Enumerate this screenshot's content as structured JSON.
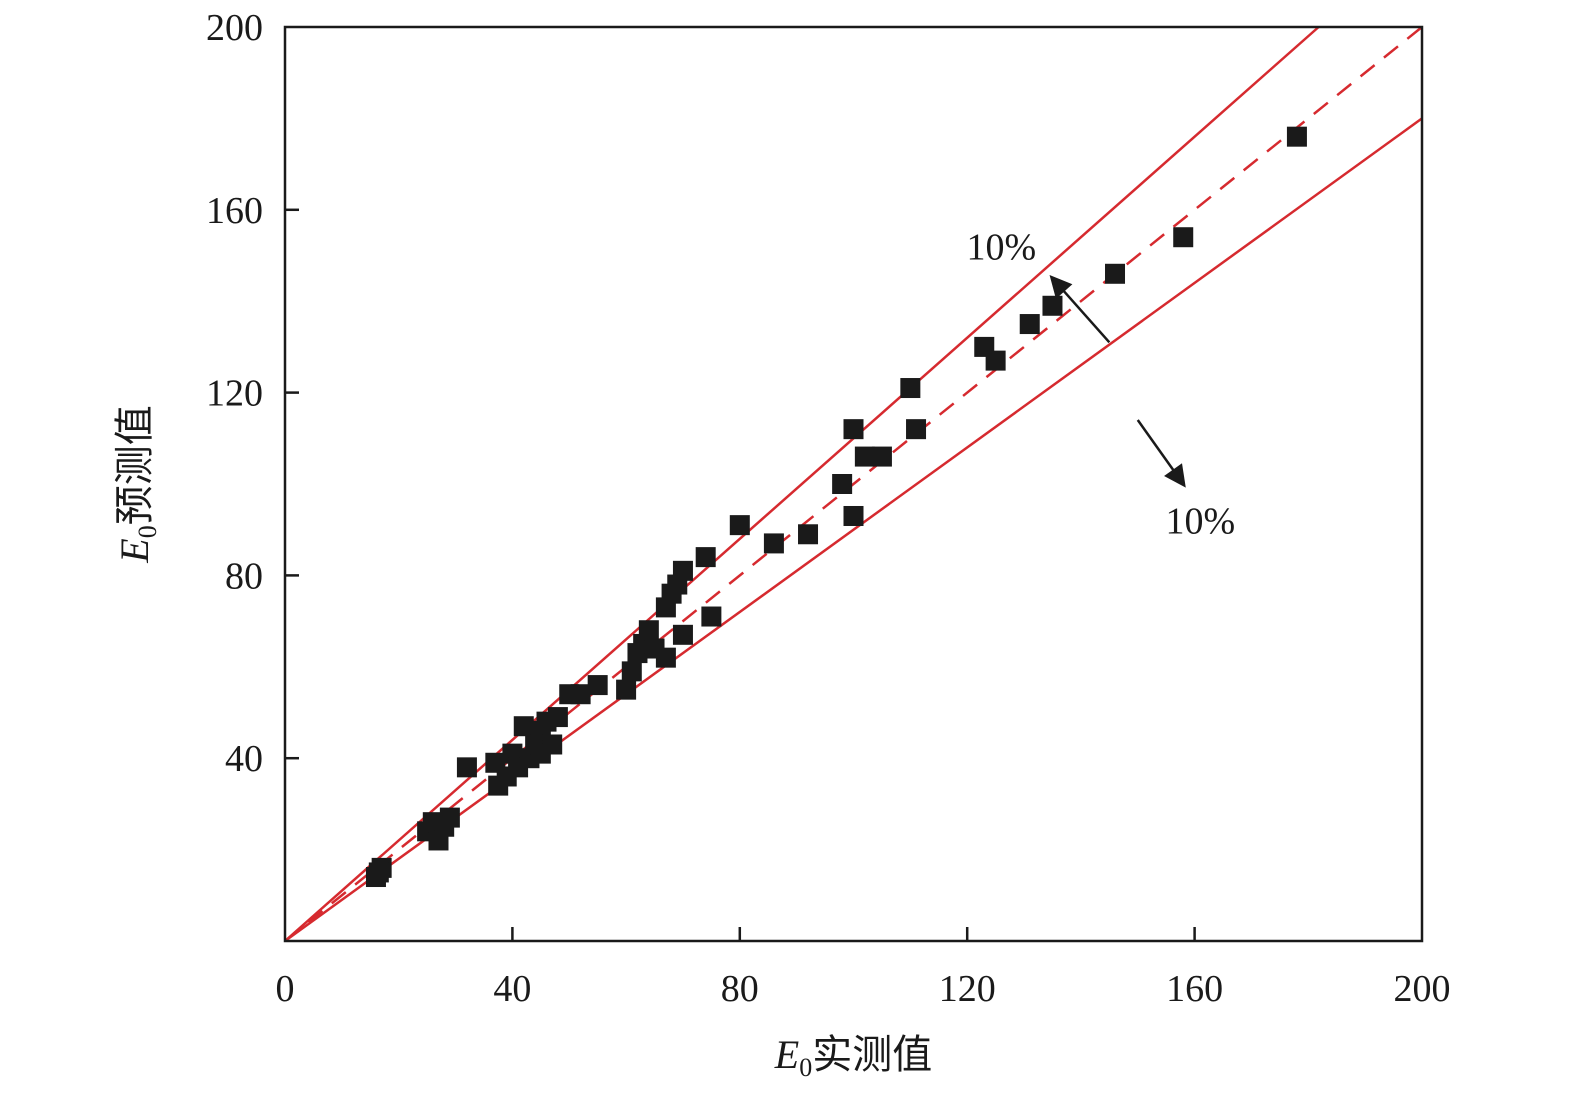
{
  "chart_data": {
    "type": "scatter",
    "title": "",
    "xlabel": "E0实测值",
    "xlabel_parts": {
      "var": "E",
      "sub": "0",
      "rest": "实测值"
    },
    "ylabel": "E0预测值",
    "ylabel_parts": {
      "var": "E",
      "sub": "0",
      "rest": "预测值"
    },
    "xlim": [
      0,
      200
    ],
    "ylim": [
      0,
      200
    ],
    "x_ticks": [
      0,
      40,
      80,
      120,
      160,
      200
    ],
    "y_ticks": [
      40,
      80,
      120,
      160,
      200
    ],
    "grid": false,
    "legend": "none",
    "colors": {
      "points": "#1a1a1a",
      "lines": "#d62a2f",
      "axes": "#1a1a1a"
    },
    "reference_lines": [
      {
        "kind": "dashed",
        "slope": 1.0
      },
      {
        "kind": "solid",
        "slope": 1.1
      },
      {
        "kind": "solid",
        "slope": 0.9
      }
    ],
    "annotations": [
      {
        "text": "10%",
        "at": [
          126,
          152
        ],
        "arrow_from": [
          145,
          131
        ],
        "arrow_to": [
          135,
          145
        ]
      },
      {
        "text": "10%",
        "at": [
          161,
          92
        ],
        "arrow_from": [
          150,
          114
        ],
        "arrow_to": [
          158,
          100
        ]
      }
    ],
    "points": [
      [
        16,
        14
      ],
      [
        17,
        16
      ],
      [
        16.5,
        15
      ],
      [
        25,
        24
      ],
      [
        26,
        26
      ],
      [
        27,
        22
      ],
      [
        28,
        25
      ],
      [
        29,
        27
      ],
      [
        32,
        38
      ],
      [
        37,
        39
      ],
      [
        37.5,
        34
      ],
      [
        39,
        36
      ],
      [
        40,
        41
      ],
      [
        41,
        38
      ],
      [
        42,
        47
      ],
      [
        43,
        40
      ],
      [
        44,
        43
      ],
      [
        45,
        41
      ],
      [
        45,
        46
      ],
      [
        46,
        48
      ],
      [
        47,
        43
      ],
      [
        48,
        49
      ],
      [
        50,
        54
      ],
      [
        52,
        54
      ],
      [
        55,
        56
      ],
      [
        60,
        55
      ],
      [
        61,
        59
      ],
      [
        62,
        63
      ],
      [
        63,
        65
      ],
      [
        64,
        68
      ],
      [
        65,
        64
      ],
      [
        67,
        62
      ],
      [
        67,
        73
      ],
      [
        68,
        76
      ],
      [
        69,
        78
      ],
      [
        70,
        81
      ],
      [
        70,
        67
      ],
      [
        74,
        84
      ],
      [
        75,
        71
      ],
      [
        80,
        91
      ],
      [
        86,
        87
      ],
      [
        92,
        89
      ],
      [
        98,
        100
      ],
      [
        100,
        112
      ],
      [
        100,
        93
      ],
      [
        102,
        106
      ],
      [
        105,
        106
      ],
      [
        110,
        121
      ],
      [
        111,
        112
      ],
      [
        123,
        130
      ],
      [
        125,
        127
      ],
      [
        131,
        135
      ],
      [
        135,
        139
      ],
      [
        146,
        146
      ],
      [
        158,
        154
      ],
      [
        178,
        176
      ]
    ]
  }
}
